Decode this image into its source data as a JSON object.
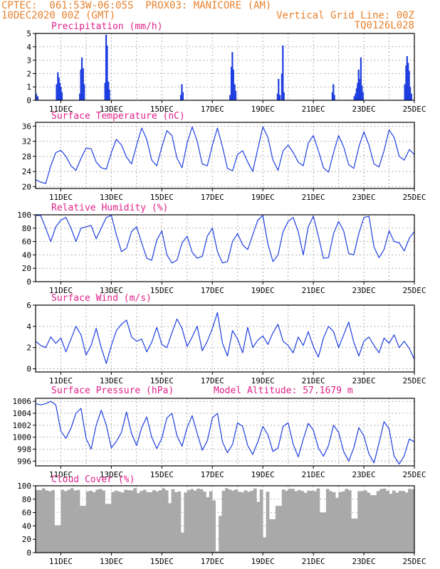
{
  "header": {
    "line1": "CPTEC:  061:53W-06:05S  PROX03: MANICORE (AM)",
    "line2_left": "10DEC2020 00Z (GMT)",
    "line2_right": "Vertical Grid Line: 00Z",
    "line3_right": "TQ0126L028"
  },
  "colors": {
    "header": "#e8822e",
    "title": "#e0218a",
    "line": "#1f3fe0",
    "bar": "#1f3fe0",
    "cloud": "#a9a9a9",
    "grid": "#b0b0b0"
  },
  "chart_data": [
    {
      "id": "precip",
      "type": "bar",
      "title": "Precipitation (mm/h)",
      "ylim": [
        0,
        5
      ],
      "yticks": [
        0,
        1,
        2,
        3,
        4,
        5
      ],
      "x_start": 10.0,
      "x_step_hours": 1,
      "x_ticks": [
        "11DEC",
        "13DEC",
        "15DEC",
        "17DEC",
        "19DEC",
        "21DEC",
        "23DEC",
        "25DEC"
      ],
      "spikes": [
        {
          "day": 10.02,
          "value": 0.5
        },
        {
          "day": 10.08,
          "value": 0.3
        },
        {
          "day": 10.83,
          "value": 1.2
        },
        {
          "day": 10.88,
          "value": 2.1
        },
        {
          "day": 10.92,
          "value": 1.7
        },
        {
          "day": 10.96,
          "value": 1.3
        },
        {
          "day": 11.0,
          "value": 1.0
        },
        {
          "day": 11.04,
          "value": 0.6
        },
        {
          "day": 11.75,
          "value": 0.5
        },
        {
          "day": 11.79,
          "value": 2.3
        },
        {
          "day": 11.83,
          "value": 3.2
        },
        {
          "day": 11.88,
          "value": 2.4
        },
        {
          "day": 11.92,
          "value": 1.2
        },
        {
          "day": 12.75,
          "value": 1.3
        },
        {
          "day": 12.79,
          "value": 4.9
        },
        {
          "day": 12.83,
          "value": 4.1
        },
        {
          "day": 12.88,
          "value": 1.4
        },
        {
          "day": 12.92,
          "value": 0.8
        },
        {
          "day": 15.75,
          "value": 0.4
        },
        {
          "day": 15.79,
          "value": 1.2
        },
        {
          "day": 15.83,
          "value": 0.6
        },
        {
          "day": 17.7,
          "value": 0.4
        },
        {
          "day": 17.75,
          "value": 2.5
        },
        {
          "day": 17.79,
          "value": 3.6
        },
        {
          "day": 17.83,
          "value": 2.3
        },
        {
          "day": 17.88,
          "value": 1.2
        },
        {
          "day": 17.92,
          "value": 0.7
        },
        {
          "day": 19.58,
          "value": 0.5
        },
        {
          "day": 19.62,
          "value": 1.6
        },
        {
          "day": 19.67,
          "value": 0.4
        },
        {
          "day": 19.75,
          "value": 2.0
        },
        {
          "day": 19.79,
          "value": 4.1
        },
        {
          "day": 19.83,
          "value": 0.6
        },
        {
          "day": 21.75,
          "value": 0.6
        },
        {
          "day": 21.79,
          "value": 1.2
        },
        {
          "day": 21.83,
          "value": 0.4
        },
        {
          "day": 22.62,
          "value": 0.3
        },
        {
          "day": 22.67,
          "value": 0.5
        },
        {
          "day": 22.71,
          "value": 0.9
        },
        {
          "day": 22.75,
          "value": 1.3
        },
        {
          "day": 22.79,
          "value": 2.3
        },
        {
          "day": 22.83,
          "value": 1.6
        },
        {
          "day": 22.88,
          "value": 3.2
        },
        {
          "day": 22.92,
          "value": 1.1
        },
        {
          "day": 22.96,
          "value": 0.6
        },
        {
          "day": 24.62,
          "value": 1.2
        },
        {
          "day": 24.67,
          "value": 2.6
        },
        {
          "day": 24.71,
          "value": 3.3
        },
        {
          "day": 24.75,
          "value": 2.8
        },
        {
          "day": 24.79,
          "value": 2.2
        },
        {
          "day": 24.83,
          "value": 1.0
        },
        {
          "day": 24.88,
          "value": 0.5
        }
      ]
    },
    {
      "id": "temp",
      "type": "line",
      "title": "Surface Temperature (nC)",
      "ylim": [
        19.5,
        37
      ],
      "yticks": [
        20,
        24,
        28,
        32,
        36
      ],
      "x_ticks": [
        "11DEC",
        "13DEC",
        "15DEC",
        "17DEC",
        "19DEC",
        "21DEC",
        "23DEC",
        "25DEC"
      ],
      "x": [
        10.0,
        10.2,
        10.4,
        10.6,
        10.8,
        11.0,
        11.2,
        11.4,
        11.6,
        11.8,
        12.0,
        12.2,
        12.4,
        12.6,
        12.8,
        13.0,
        13.2,
        13.4,
        13.6,
        13.8,
        14.0,
        14.2,
        14.4,
        14.6,
        14.8,
        15.0,
        15.2,
        15.4,
        15.6,
        15.8,
        16.0,
        16.2,
        16.4,
        16.6,
        16.8,
        17.0,
        17.2,
        17.4,
        17.6,
        17.8,
        18.0,
        18.2,
        18.4,
        18.6,
        18.8,
        19.0,
        19.2,
        19.4,
        19.6,
        19.8,
        20.0,
        20.2,
        20.4,
        20.6,
        20.8,
        21.0,
        21.2,
        21.4,
        21.6,
        21.8,
        22.0,
        22.2,
        22.4,
        22.6,
        22.8,
        23.0,
        23.2,
        23.4,
        23.6,
        23.8,
        24.0,
        24.2,
        24.4,
        24.6,
        24.8,
        25.0
      ],
      "values": [
        21.8,
        21.2,
        20.8,
        25.5,
        29.0,
        29.6,
        28.0,
        25.5,
        24.3,
        27.5,
        30.2,
        30.0,
        26.5,
        25.0,
        24.6,
        29.0,
        32.5,
        31.0,
        27.8,
        26.0,
        31.0,
        35.5,
        32.5,
        27.0,
        25.5,
        30.5,
        34.8,
        33.5,
        27.5,
        25.0,
        31.5,
        35.8,
        32.0,
        26.0,
        25.5,
        31.0,
        35.5,
        30.5,
        24.8,
        24.2,
        28.5,
        29.5,
        26.5,
        24.0,
        30.0,
        35.8,
        33.0,
        27.0,
        24.3,
        29.5,
        31.0,
        29.0,
        26.5,
        25.5,
        31.5,
        33.5,
        29.5,
        25.0,
        23.8,
        29.0,
        33.5,
        30.5,
        25.8,
        24.8,
        30.5,
        34.5,
        31.0,
        26.0,
        25.2,
        29.5,
        35.0,
        33.0,
        28.0,
        27.0,
        29.8,
        28.5
      ]
    },
    {
      "id": "rh",
      "type": "line",
      "title": "Relative Humidity (%)",
      "ylim": [
        0,
        100
      ],
      "yticks": [
        0,
        20,
        40,
        60,
        80,
        100
      ],
      "x_ticks": [
        "11DEC",
        "13DEC",
        "15DEC",
        "17DEC",
        "19DEC",
        "21DEC",
        "23DEC",
        "25DEC"
      ],
      "x": [
        10.0,
        10.2,
        10.4,
        10.6,
        10.8,
        11.0,
        11.2,
        11.4,
        11.6,
        11.8,
        12.0,
        12.2,
        12.4,
        12.6,
        12.8,
        13.0,
        13.2,
        13.4,
        13.6,
        13.8,
        14.0,
        14.2,
        14.4,
        14.6,
        14.8,
        15.0,
        15.2,
        15.4,
        15.6,
        15.8,
        16.0,
        16.2,
        16.4,
        16.6,
        16.8,
        17.0,
        17.2,
        17.4,
        17.6,
        17.8,
        18.0,
        18.2,
        18.4,
        18.6,
        18.8,
        19.0,
        19.2,
        19.4,
        19.6,
        19.8,
        20.0,
        20.2,
        20.4,
        20.6,
        20.8,
        21.0,
        21.2,
        21.4,
        21.6,
        21.8,
        22.0,
        22.2,
        22.4,
        22.6,
        22.8,
        23.0,
        23.2,
        23.4,
        23.6,
        23.8,
        24.0,
        24.2,
        24.4,
        24.6,
        24.8,
        25.0
      ],
      "values": [
        99,
        99,
        80,
        60,
        82,
        92,
        96,
        80,
        60,
        80,
        82,
        84,
        64,
        80,
        96,
        99,
        70,
        45,
        50,
        75,
        82,
        58,
        35,
        32,
        62,
        76,
        40,
        28,
        32,
        58,
        68,
        44,
        35,
        38,
        68,
        80,
        45,
        28,
        30,
        60,
        72,
        55,
        48,
        70,
        92,
        99,
        56,
        30,
        40,
        75,
        90,
        96,
        75,
        40,
        82,
        98,
        68,
        35,
        36,
        72,
        90,
        76,
        42,
        40,
        72,
        96,
        98,
        52,
        36,
        48,
        76,
        60,
        58,
        46,
        65,
        75
      ]
    },
    {
      "id": "wind",
      "type": "line",
      "title": "Surface Wind (m/s)",
      "ylim": [
        -0.3,
        6
      ],
      "yticks": [
        0,
        2,
        4,
        6
      ],
      "x_ticks": [
        "11DEC",
        "13DEC",
        "15DEC",
        "17DEC",
        "19DEC",
        "21DEC",
        "23DEC",
        "25DEC"
      ],
      "x": [
        10.0,
        10.2,
        10.4,
        10.6,
        10.8,
        11.0,
        11.2,
        11.4,
        11.6,
        11.8,
        12.0,
        12.2,
        12.4,
        12.6,
        12.8,
        13.0,
        13.2,
        13.4,
        13.6,
        13.8,
        14.0,
        14.2,
        14.4,
        14.6,
        14.8,
        15.0,
        15.2,
        15.4,
        15.6,
        15.8,
        16.0,
        16.2,
        16.4,
        16.6,
        16.8,
        17.0,
        17.2,
        17.4,
        17.6,
        17.8,
        18.0,
        18.2,
        18.4,
        18.6,
        18.8,
        19.0,
        19.2,
        19.4,
        19.6,
        19.8,
        20.0,
        20.2,
        20.4,
        20.6,
        20.8,
        21.0,
        21.2,
        21.4,
        21.6,
        21.8,
        22.0,
        22.2,
        22.4,
        22.6,
        22.8,
        23.0,
        23.2,
        23.4,
        23.6,
        23.8,
        24.0,
        24.2,
        24.4,
        24.6,
        24.8,
        25.0
      ],
      "values": [
        2.6,
        2.2,
        2.0,
        3.0,
        2.4,
        2.9,
        1.6,
        2.8,
        4.0,
        3.2,
        1.3,
        2.2,
        3.8,
        2.0,
        0.5,
        2.2,
        3.6,
        4.2,
        4.6,
        3.0,
        2.6,
        2.8,
        1.6,
        2.5,
        3.9,
        2.3,
        2.0,
        3.4,
        4.7,
        3.8,
        2.1,
        3.0,
        4.0,
        1.7,
        2.6,
        3.8,
        5.3,
        2.4,
        1.2,
        3.6,
        2.8,
        1.5,
        3.9,
        2.0,
        2.7,
        3.1,
        2.3,
        3.4,
        4.2,
        2.6,
        2.2,
        1.5,
        3.0,
        2.2,
        3.5,
        2.1,
        1.1,
        2.9,
        4.0,
        3.5,
        2.0,
        3.2,
        4.4,
        2.5,
        1.2,
        2.6,
        3.0,
        2.2,
        1.5,
        2.9,
        2.4,
        3.2,
        2.0,
        2.6,
        1.9,
        0.9
      ]
    },
    {
      "id": "pres",
      "type": "line",
      "title": "Surface Pressure (hPa)",
      "annotation": "Model Altitude: 57.1679 m",
      "ylim": [
        995.2,
        1006.5
      ],
      "yticks": [
        996,
        998,
        1000,
        1002,
        1004,
        1006
      ],
      "x_ticks": [
        "11DEC",
        "13DEC",
        "15DEC",
        "17DEC",
        "19DEC",
        "21DEC",
        "23DEC",
        "25DEC"
      ],
      "x": [
        10.0,
        10.2,
        10.4,
        10.6,
        10.8,
        11.0,
        11.2,
        11.4,
        11.6,
        11.8,
        12.0,
        12.2,
        12.4,
        12.6,
        12.8,
        13.0,
        13.2,
        13.4,
        13.6,
        13.8,
        14.0,
        14.2,
        14.4,
        14.6,
        14.8,
        15.0,
        15.2,
        15.4,
        15.6,
        15.8,
        16.0,
        16.2,
        16.4,
        16.6,
        16.8,
        17.0,
        17.2,
        17.4,
        17.6,
        17.8,
        18.0,
        18.2,
        18.4,
        18.6,
        18.8,
        19.0,
        19.2,
        19.4,
        19.6,
        19.8,
        20.0,
        20.2,
        20.4,
        20.6,
        20.8,
        21.0,
        21.2,
        21.4,
        21.6,
        21.8,
        22.0,
        22.2,
        22.4,
        22.6,
        22.8,
        23.0,
        23.2,
        23.4,
        23.6,
        23.8,
        24.0,
        24.2,
        24.4,
        24.6,
        24.8,
        25.0
      ],
      "values": [
        1005.6,
        1005.4,
        1005.6,
        1006.0,
        1005.4,
        1001.0,
        999.8,
        1001.5,
        1004.0,
        1004.8,
        999.8,
        998.0,
        1002.0,
        1004.5,
        1002.0,
        998.2,
        999.3,
        1000.8,
        1004.2,
        1000.6,
        998.6,
        1001.6,
        1003.4,
        1000.0,
        998.1,
        999.8,
        1003.2,
        1004.0,
        1000.2,
        998.5,
        1001.6,
        1003.6,
        1000.6,
        997.8,
        999.4,
        1003.2,
        1004.0,
        999.2,
        997.4,
        998.8,
        1002.4,
        1001.8,
        998.6,
        997.1,
        999.2,
        1001.8,
        1000.4,
        997.6,
        998.2,
        1001.8,
        1002.4,
        998.8,
        996.7,
        999.6,
        1002.3,
        1001.2,
        998.2,
        996.8,
        998.6,
        1002.0,
        1000.8,
        997.6,
        996.0,
        998.2,
        1001.6,
        1000.2,
        997.2,
        995.7,
        999.0,
        1002.6,
        1001.4,
        996.8,
        995.5,
        996.9,
        999.7,
        999.2
      ]
    },
    {
      "id": "cloud",
      "type": "area",
      "title": "Cloud Cover (%)",
      "ylim": [
        0,
        100
      ],
      "yticks": [
        0,
        20,
        40,
        60,
        80,
        100
      ],
      "x_ticks": [
        "11DEC",
        "13DEC",
        "15DEC",
        "17DEC",
        "19DEC",
        "21DEC",
        "23DEC",
        "25DEC"
      ],
      "base_value": 93,
      "dips": [
        {
          "day": 10.83,
          "value": 41
        },
        {
          "day": 11.83,
          "value": 70
        },
        {
          "day": 12.83,
          "value": 73
        },
        {
          "day": 14.0,
          "value": 89
        },
        {
          "day": 15.25,
          "value": 74
        },
        {
          "day": 15.75,
          "value": 30
        },
        {
          "day": 16.75,
          "value": 83
        },
        {
          "day": 17.04,
          "value": 78
        },
        {
          "day": 17.1,
          "value": 2
        },
        {
          "day": 17.29,
          "value": 55
        },
        {
          "day": 18.75,
          "value": 76
        },
        {
          "day": 19.0,
          "value": 23
        },
        {
          "day": 19.33,
          "value": 50
        },
        {
          "day": 19.58,
          "value": 70
        },
        {
          "day": 21.33,
          "value": 60
        },
        {
          "day": 21.88,
          "value": 82
        },
        {
          "day": 22.58,
          "value": 51
        },
        {
          "day": 23.33,
          "value": 86
        },
        {
          "day": 24.04,
          "value": 88
        },
        {
          "day": 24.62,
          "value": 90
        }
      ]
    }
  ]
}
